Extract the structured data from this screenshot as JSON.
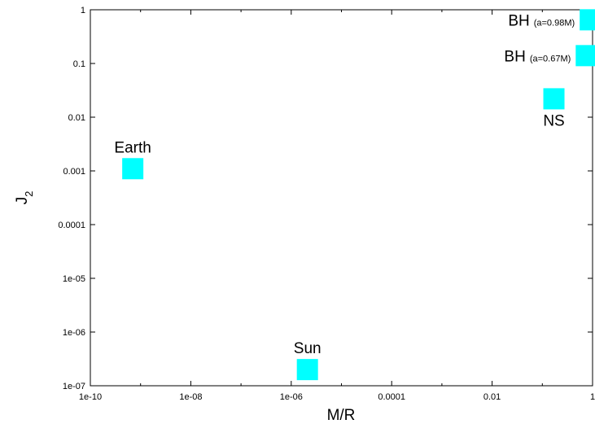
{
  "chart_data": {
    "type": "scatter",
    "title": "",
    "xlabel": "M/R",
    "ylabel": "J",
    "ylabel_subscript": "2",
    "xscale": "log",
    "yscale": "log",
    "xlim": [
      1e-10,
      1
    ],
    "ylim": [
      1e-07,
      1
    ],
    "grid": false,
    "legend": "none",
    "marker": "square",
    "marker_color": "#00ffff",
    "xticks": [
      "1e-10",
      "1e-08",
      "1e-06",
      "0.0001",
      "0.01",
      "1"
    ],
    "yticks": [
      "1e-07",
      "1e-06",
      "1e-05",
      "0.0001",
      "0.001",
      "0.01",
      "0.1",
      "1"
    ],
    "points": [
      {
        "label": "Earth",
        "sublabel": "",
        "x": 7e-10,
        "y": 0.0011,
        "label_pos": "above"
      },
      {
        "label": "Sun",
        "sublabel": "",
        "x": 2.1e-06,
        "y": 2e-07,
        "label_pos": "above"
      },
      {
        "label": "NS",
        "sublabel": "",
        "x": 0.17,
        "y": 0.022,
        "label_pos": "below"
      },
      {
        "label": "BH",
        "sublabel": "(a=0.98M)",
        "x": 0.9,
        "y": 0.65,
        "label_pos": "left"
      },
      {
        "label": "BH",
        "sublabel": "(a=0.67M)",
        "x": 0.75,
        "y": 0.14,
        "label_pos": "left"
      }
    ]
  }
}
